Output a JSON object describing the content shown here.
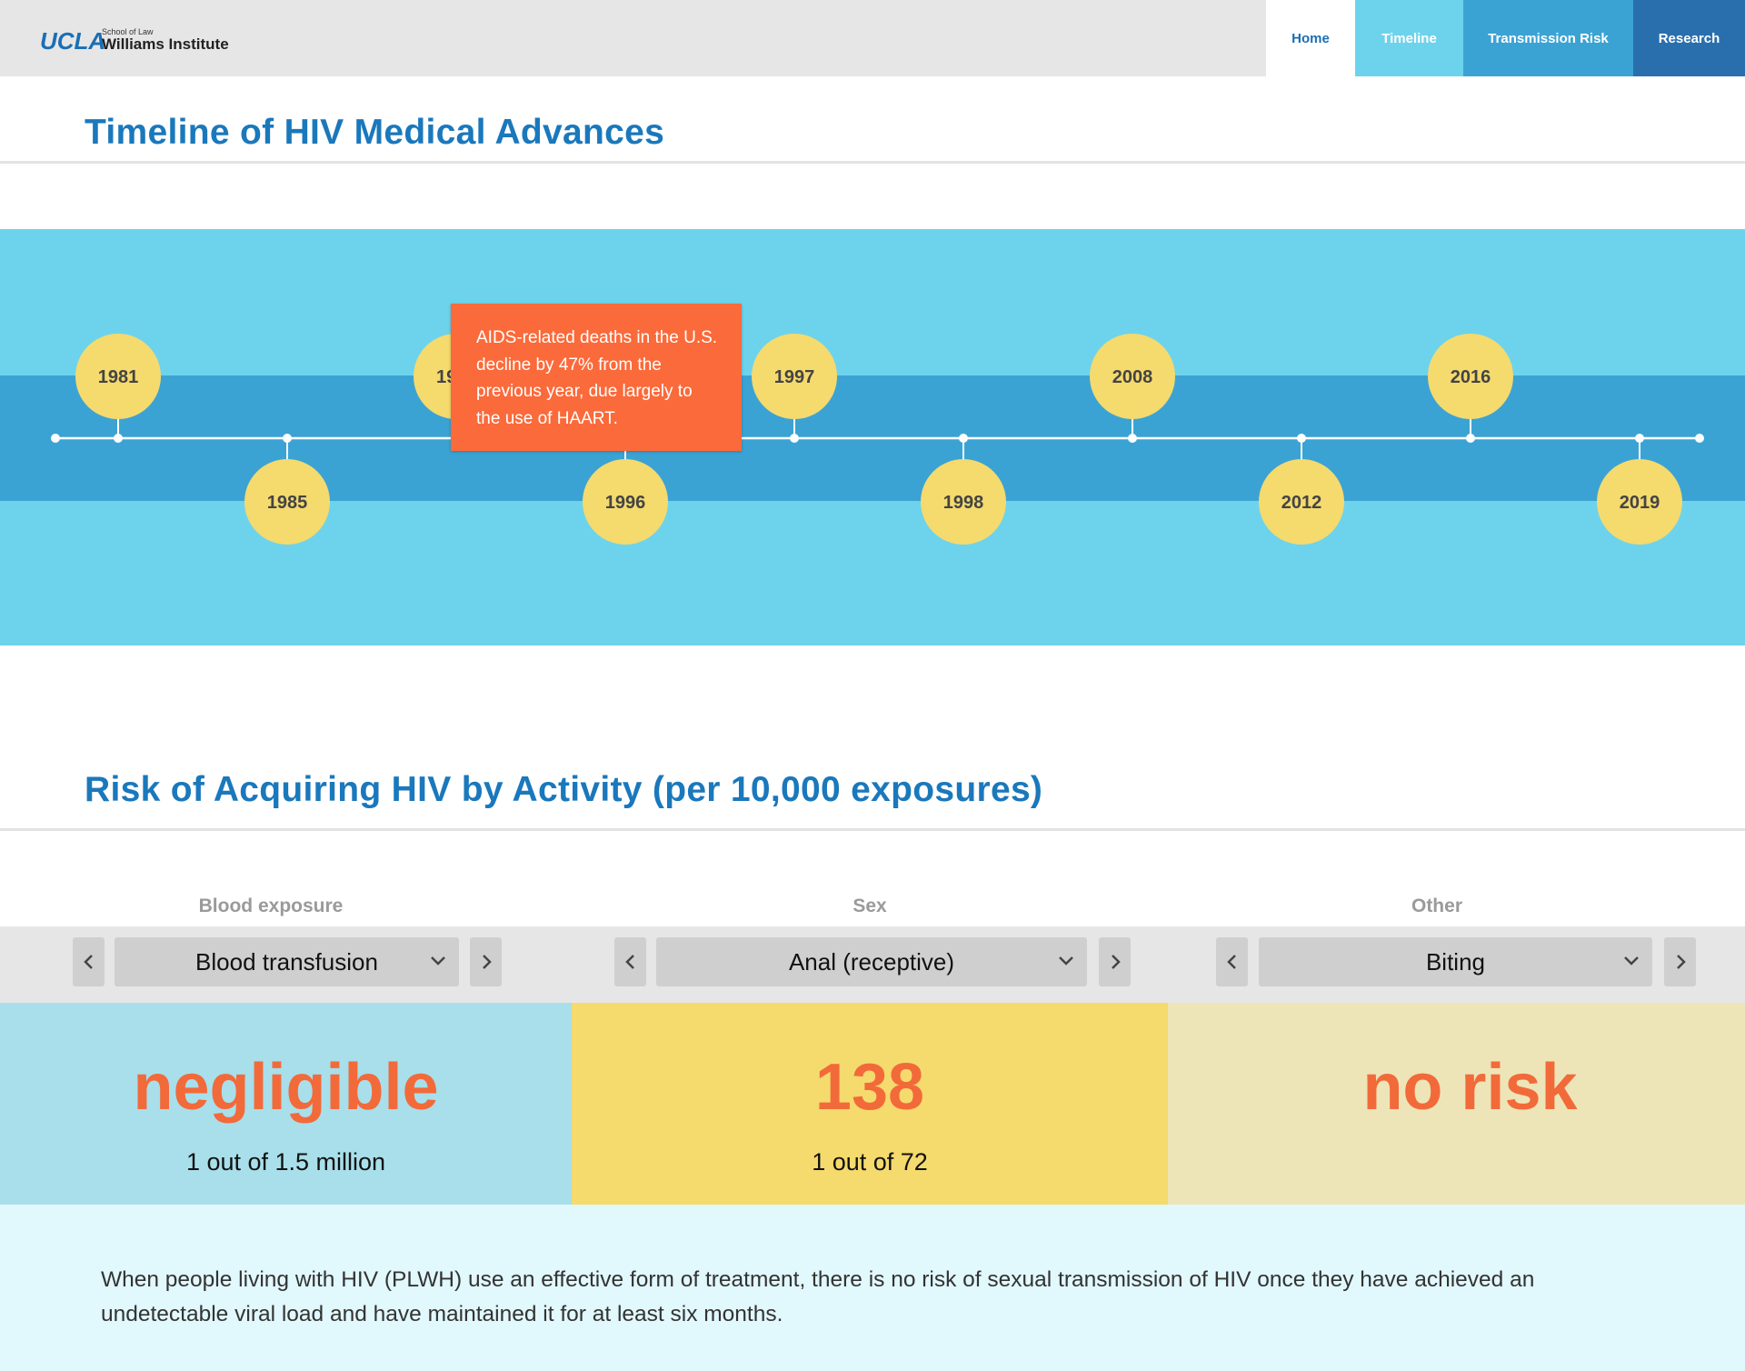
{
  "header": {
    "logo": {
      "ucla": "UCLA",
      "school": "School of Law",
      "institute": "Williams Institute"
    },
    "nav": [
      "Home",
      "Timeline",
      "Transmission Risk",
      "Research"
    ]
  },
  "timeline": {
    "title": "Timeline of HIV Medical Advances",
    "events": [
      "1981",
      "1985",
      "19",
      "1996",
      "1997",
      "1998",
      "2008",
      "2012",
      "2016",
      "2019"
    ],
    "tooltip": "AIDS-related deaths in the U.S. decline by 47% from the previous year, due largely to the use of HAART."
  },
  "risk": {
    "title": "Risk of Acquiring HIV by Activity (per 10,000 exposures)",
    "columns": [
      {
        "category": "Blood exposure",
        "selection": "Blood transfusion",
        "result": "negligible",
        "odds": "1 out of 1.5 million"
      },
      {
        "category": "Sex",
        "selection": "Anal (receptive)",
        "result": 138,
        "odds": "1 out of 72"
      },
      {
        "category": "Other",
        "selection": "Biting",
        "result": "no risk",
        "odds": null
      }
    ]
  },
  "note": "When people living with HIV (PLWH) use an effective form of treatment, there is no risk of sexual transmission of HIV once they have achieved an undetectable viral load and have maintained it for at least six months."
}
